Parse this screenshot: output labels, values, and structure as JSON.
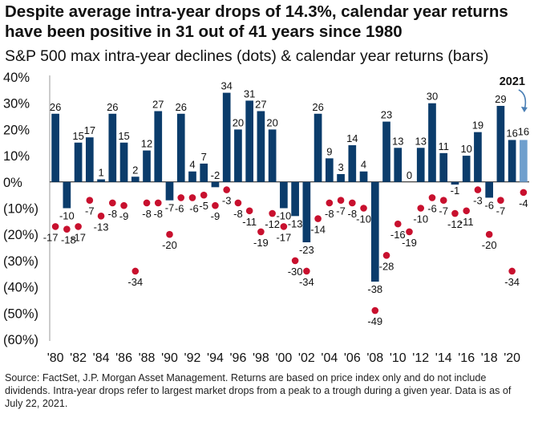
{
  "title": "Despite average intra-year drops of 14.3%, calendar year returns have been positive in 31 out of 41 years since 1980",
  "subtitle": "S&P 500 max intra-year declines (dots) & calendar year returns (bars)",
  "source": "Source: FactSet, J.P. Morgan Asset Management. Returns are based on price index only and do not include dividends. Intra-year drops refer to largest market drops from a peak to a trough during a given year. Data is as of July 22, 2021.",
  "colors": {
    "bar": "#0b3c6b",
    "bar_highlight": "#6f9fcd",
    "dot": "#c8102e",
    "arrow": "#4a7fb5"
  },
  "chart_data": {
    "type": "bar",
    "title": "S&P 500 max intra-year declines (dots) & calendar year returns (bars)",
    "xlabel": "",
    "ylabel": "",
    "ylim": [
      -60,
      40
    ],
    "yticks": [
      40,
      30,
      20,
      10,
      0,
      -10,
      -20,
      -30,
      -40,
      -50,
      -60
    ],
    "ytick_labels": [
      "40%",
      "30%",
      "20%",
      "10%",
      "0%",
      "(10%)",
      "(20%)",
      "(30%)",
      "(40%)",
      "(50%)",
      "(60%)"
    ],
    "categories": [
      "1980",
      "1981",
      "1982",
      "1983",
      "1984",
      "1985",
      "1986",
      "1987",
      "1988",
      "1989",
      "1990",
      "1991",
      "1992",
      "1993",
      "1994",
      "1995",
      "1996",
      "1997",
      "1998",
      "1999",
      "2000",
      "2001",
      "2002",
      "2003",
      "2004",
      "2005",
      "2006",
      "2007",
      "2008",
      "2009",
      "2010",
      "2011",
      "2012",
      "2013",
      "2014",
      "2015",
      "2016",
      "2017",
      "2018",
      "2019",
      "2020",
      "2021"
    ],
    "xtick_labels": [
      "'80",
      "'82",
      "'84",
      "'86",
      "'88",
      "'90",
      "'92",
      "'94",
      "'96",
      "'98",
      "'00",
      "'02",
      "'04",
      "'06",
      "'08",
      "'10",
      "'12",
      "'14",
      "'16",
      "'18",
      "'20"
    ],
    "series": [
      {
        "name": "Calendar year returns (bars)",
        "values": [
          26,
          -10,
          15,
          17,
          1,
          26,
          15,
          2,
          12,
          27,
          -7,
          26,
          4,
          7,
          -2,
          34,
          20,
          31,
          27,
          20,
          -10,
          -13,
          -23,
          26,
          9,
          3,
          14,
          4,
          -38,
          23,
          13,
          0,
          13,
          30,
          11,
          -1,
          10,
          19,
          -6,
          29,
          16,
          16
        ],
        "labels": [
          "26",
          "-10",
          "15",
          "17",
          "1",
          "26",
          "15",
          "2",
          "12",
          "27",
          "-7",
          "26",
          "4",
          "7",
          "-2",
          "34",
          "20",
          "31",
          "27",
          "20",
          "-10",
          "-13",
          "-23",
          "26",
          "9",
          "3",
          "14",
          "4",
          "-38",
          "23",
          "13",
          "0",
          "13",
          "30",
          "11",
          "-1",
          "10",
          "19",
          "-6",
          "29",
          "16",
          "16"
        ]
      },
      {
        "name": "Max intra-year declines (dots)",
        "values": [
          -17,
          -18,
          -17,
          -7,
          -13,
          -8,
          -9,
          -34,
          -8,
          -8,
          -20,
          -6,
          -6,
          -5,
          -9,
          -3,
          -8,
          -11,
          -19,
          -12,
          -17,
          -30,
          -34,
          -14,
          -8,
          -7,
          -8,
          -10,
          -49,
          -28,
          -16,
          -19,
          -10,
          -6,
          -7,
          -12,
          -11,
          -3,
          -20,
          -7,
          -34,
          -4
        ],
        "labels": [
          "-17",
          "-18",
          "-17",
          "-7",
          "-13",
          "-8",
          "-9",
          "-34",
          "-8",
          "-8",
          "-20",
          "-6",
          "-6",
          "-5",
          "-9",
          "-3",
          "-8",
          "-11",
          "-19",
          "-12",
          "-17",
          "-30",
          "-34",
          "-14",
          "-8",
          "-7",
          "-8",
          "-10",
          "-49",
          "-28",
          "-16",
          "-19",
          "-10",
          "-6",
          "-7",
          "-12",
          "-11",
          "-3",
          "-20",
          "-7",
          "-34",
          "-4"
        ]
      }
    ],
    "annotation": "2021"
  }
}
